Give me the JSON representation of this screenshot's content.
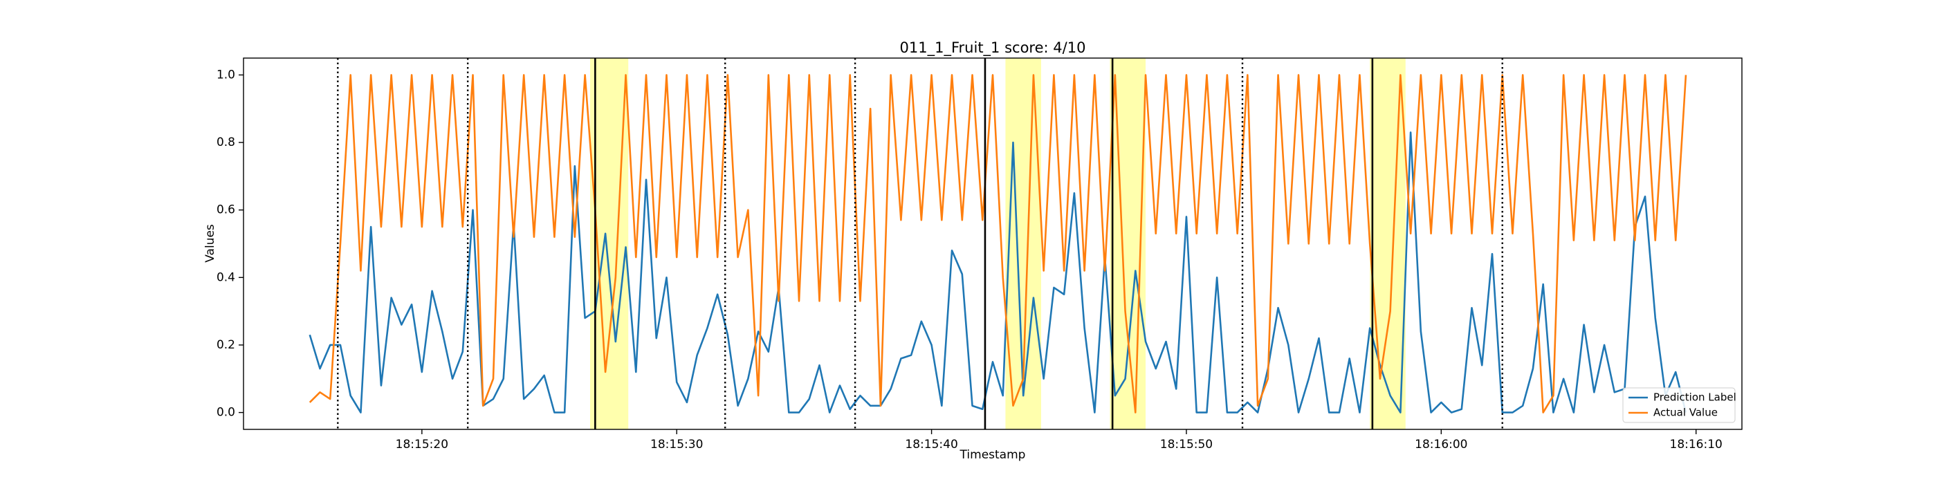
{
  "chart_data": {
    "type": "line",
    "title": "011_1_Fruit_1 score: 4/10",
    "xlabel": "Timestamp",
    "ylabel": "Values",
    "xlim": [
      65713.0,
      65771.8
    ],
    "ylim": [
      -0.05,
      1.05
    ],
    "xticks": [
      {
        "value": 65720,
        "label": "18:15:20"
      },
      {
        "value": 65730,
        "label": "18:15:30"
      },
      {
        "value": 65740,
        "label": "18:15:40"
      },
      {
        "value": 65750,
        "label": "18:15:50"
      },
      {
        "value": 65760,
        "label": "18:16:00"
      },
      {
        "value": 65770,
        "label": "18:16:10"
      }
    ],
    "yticks": [
      {
        "value": 0,
        "label": "0.0"
      },
      {
        "value": 0.2,
        "label": "0.2"
      },
      {
        "value": 0.4,
        "label": "0.4"
      },
      {
        "value": 0.6,
        "label": "0.6"
      },
      {
        "value": 0.8,
        "label": "0.8"
      },
      {
        "value": 1,
        "label": "1.0"
      }
    ],
    "legend": "lower right",
    "highlight_color": "#ffff99",
    "highlight_spans": [
      [
        65726.6,
        65728.1
      ],
      [
        65742.9,
        65744.3
      ],
      [
        65747.0,
        65748.4
      ],
      [
        65757.2,
        65758.6
      ]
    ],
    "dotted_lines": [
      65716.7,
      65721.8,
      65731.9,
      65737.0,
      65752.2,
      65762.4
    ],
    "solid_lines": [
      65726.8,
      65742.1,
      65747.1,
      65757.3
    ],
    "x": [
      65715.6,
      65716,
      65716.4,
      65716.8,
      65717.2,
      65717.6,
      65718,
      65718.4,
      65718.8,
      65719.2,
      65719.6,
      65720,
      65720.4,
      65720.8,
      65721.2,
      65721.6,
      65722,
      65722.4,
      65722.8,
      65723.2,
      65723.6,
      65724,
      65724.4,
      65724.8,
      65725.2,
      65725.6,
      65726,
      65726.4,
      65726.8,
      65727.2,
      65727.6,
      65728,
      65728.4,
      65728.8,
      65729.2,
      65729.6,
      65730,
      65730.4,
      65730.8,
      65731.2,
      65731.6,
      65732,
      65732.4,
      65732.8,
      65733.2,
      65733.6,
      65734,
      65734.4,
      65734.8,
      65735.2,
      65735.6,
      65736,
      65736.4,
      65736.8,
      65737.2,
      65737.6,
      65738,
      65738.4,
      65738.8,
      65739.2,
      65739.6,
      65740,
      65740.4,
      65740.8,
      65741.2,
      65741.6,
      65742,
      65742.4,
      65742.8,
      65743.2,
      65743.6,
      65744,
      65744.4,
      65744.8,
      65745.2,
      65745.6,
      65746,
      65746.4,
      65746.8,
      65747.2,
      65747.6,
      65748,
      65748.4,
      65748.8,
      65749.2,
      65749.6,
      65750,
      65750.4,
      65750.8,
      65751.2,
      65751.6,
      65752,
      65752.4,
      65752.8,
      65753.2,
      65753.6,
      65754,
      65754.4,
      65754.8,
      65755.2,
      65755.6,
      65756,
      65756.4,
      65756.8,
      65757.2,
      65757.6,
      65758,
      65758.4,
      65758.8,
      65759.2,
      65759.6,
      65760,
      65760.4,
      65760.8,
      65761.2,
      65761.6,
      65762,
      65762.4,
      65762.8,
      65763.2,
      65763.6,
      65764,
      65764.4,
      65764.8,
      65765.2,
      65765.6,
      65766,
      65766.4,
      65766.8,
      65767.2,
      65767.6,
      65768,
      65768.4,
      65768.8,
      65769.2,
      65769.6
    ],
    "series": [
      {
        "name": "Prediction Label",
        "color": "#1f77b4",
        "values": [
          0.23,
          0.13,
          0.2,
          0.2,
          0.05,
          0.0,
          0.55,
          0.08,
          0.34,
          0.26,
          0.32,
          0.12,
          0.36,
          0.24,
          0.1,
          0.18,
          0.6,
          0.02,
          0.04,
          0.1,
          0.56,
          0.04,
          0.07,
          0.11,
          0.0,
          0.0,
          0.73,
          0.28,
          0.3,
          0.53,
          0.21,
          0.49,
          0.12,
          0.69,
          0.22,
          0.4,
          0.09,
          0.03,
          0.17,
          0.25,
          0.35,
          0.23,
          0.02,
          0.1,
          0.24,
          0.18,
          0.37,
          0.0,
          0.0,
          0.04,
          0.14,
          0.0,
          0.08,
          0.01,
          0.05,
          0.02,
          0.02,
          0.07,
          0.16,
          0.17,
          0.27,
          0.2,
          0.02,
          0.48,
          0.41,
          0.02,
          0.01,
          0.15,
          0.05,
          0.8,
          0.05,
          0.34,
          0.1,
          0.37,
          0.35,
          0.65,
          0.25,
          0.0,
          0.46,
          0.05,
          0.1,
          0.42,
          0.21,
          0.13,
          0.21,
          0.07,
          0.58,
          0.0,
          0.0,
          0.4,
          0.0,
          0.0,
          0.03,
          0.0,
          0.13,
          0.31,
          0.2,
          0.0,
          0.1,
          0.22,
          0.0,
          0.0,
          0.16,
          0.0,
          0.25,
          0.14,
          0.05,
          0.0,
          0.83,
          0.24,
          0.0,
          0.03,
          0.0,
          0.01,
          0.31,
          0.14,
          0.47,
          0.0,
          0.0,
          0.02,
          0.13,
          0.38,
          0.0,
          0.1,
          0.0,
          0.26,
          0.06,
          0.2,
          0.06,
          0.07,
          0.55,
          0.64,
          0.28,
          0.05,
          0.12,
          0.0
        ]
      },
      {
        "name": "Actual Value",
        "color": "#ff7f0e",
        "values": [
          0.03,
          0.06,
          0.04,
          0.5,
          1.0,
          0.42,
          1.0,
          0.55,
          1.0,
          0.55,
          1.0,
          0.55,
          1.0,
          0.55,
          1.0,
          0.55,
          1.0,
          0.02,
          0.1,
          1.0,
          0.52,
          1.0,
          0.52,
          1.0,
          0.52,
          1.0,
          0.52,
          1.0,
          0.6,
          0.12,
          0.4,
          1.0,
          0.46,
          1.0,
          0.46,
          1.0,
          0.46,
          1.0,
          0.46,
          1.0,
          0.46,
          1.0,
          0.46,
          0.6,
          0.05,
          1.0,
          0.33,
          1.0,
          0.33,
          1.0,
          0.33,
          1.0,
          0.33,
          1.0,
          0.33,
          0.9,
          0.02,
          1.0,
          0.57,
          1.0,
          0.57,
          1.0,
          0.57,
          1.0,
          0.57,
          1.0,
          0.57,
          1.0,
          0.4,
          0.02,
          0.1,
          1.0,
          0.42,
          1.0,
          0.42,
          1.0,
          0.42,
          1.0,
          0.42,
          1.0,
          0.3,
          0.0,
          1.0,
          0.53,
          1.0,
          0.53,
          1.0,
          0.53,
          1.0,
          0.53,
          1.0,
          0.53,
          1.0,
          0.02,
          0.1,
          1.0,
          0.5,
          1.0,
          0.5,
          1.0,
          0.5,
          1.0,
          0.5,
          1.0,
          0.5,
          0.1,
          0.3,
          1.0,
          0.53,
          1.0,
          0.53,
          1.0,
          0.53,
          1.0,
          0.53,
          1.0,
          0.53,
          1.0,
          0.53,
          1.0,
          0.53,
          0.0,
          0.05,
          1.0,
          0.51,
          1.0,
          0.51,
          1.0,
          0.51,
          1.0,
          0.51,
          1.0,
          0.51,
          1.0,
          0.51,
          1.0
        ]
      }
    ]
  }
}
